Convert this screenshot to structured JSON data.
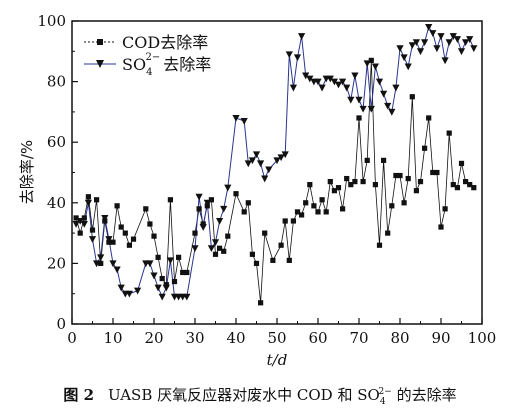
{
  "chart_data": {
    "type": "line",
    "xlabel": "t/d",
    "ylabel": "去除率/%",
    "xlim": [
      0,
      100
    ],
    "ylim": [
      0,
      100
    ],
    "xticks": [
      0,
      10,
      20,
      30,
      40,
      50,
      60,
      70,
      80,
      90,
      100
    ],
    "yticks": [
      0,
      20,
      40,
      60,
      80,
      100
    ],
    "legend_position": "top-left",
    "grid": false,
    "series": [
      {
        "name": "COD去除率",
        "marker": "square",
        "color": "#111111",
        "points": [
          [
            1,
            35
          ],
          [
            2,
            30
          ],
          [
            3,
            35
          ],
          [
            4,
            42
          ],
          [
            5,
            31
          ],
          [
            6,
            41
          ],
          [
            7,
            20
          ],
          [
            8,
            34
          ],
          [
            9,
            27
          ],
          [
            10,
            27
          ],
          [
            11,
            39
          ],
          [
            12,
            32
          ],
          [
            13,
            30
          ],
          [
            14,
            26
          ],
          [
            15,
            28
          ],
          [
            18,
            38
          ],
          [
            19,
            33
          ],
          [
            20,
            29
          ],
          [
            21,
            22
          ],
          [
            22,
            15
          ],
          [
            23,
            13
          ],
          [
            24,
            41
          ],
          [
            25,
            14
          ],
          [
            26,
            22
          ],
          [
            27,
            17
          ],
          [
            28,
            17
          ],
          [
            30,
            30
          ],
          [
            31,
            38
          ],
          [
            32,
            33
          ],
          [
            33,
            39
          ],
          [
            34,
            41
          ],
          [
            35,
            23
          ],
          [
            36,
            25
          ],
          [
            37,
            24
          ],
          [
            38,
            29
          ],
          [
            40,
            43
          ],
          [
            42,
            37
          ],
          [
            43,
            40
          ],
          [
            44,
            23
          ],
          [
            45,
            20
          ],
          [
            46,
            7
          ],
          [
            47,
            30
          ],
          [
            49,
            21
          ],
          [
            51,
            26
          ],
          [
            52,
            34
          ],
          [
            53,
            21
          ],
          [
            54,
            34
          ],
          [
            55,
            37
          ],
          [
            56,
            36
          ],
          [
            57,
            40
          ],
          [
            58,
            46
          ],
          [
            59,
            39
          ],
          [
            60,
            37
          ],
          [
            61,
            41
          ],
          [
            62,
            37
          ],
          [
            63,
            47
          ],
          [
            64,
            44
          ],
          [
            65,
            45
          ],
          [
            66,
            38
          ],
          [
            67,
            48
          ],
          [
            68,
            46
          ],
          [
            69,
            47
          ],
          [
            70,
            68
          ],
          [
            71,
            47
          ],
          [
            72,
            54
          ],
          [
            73,
            87
          ],
          [
            74,
            46
          ],
          [
            75,
            26
          ],
          [
            76,
            54
          ],
          [
            77,
            30
          ],
          [
            78,
            39
          ],
          [
            79,
            49
          ],
          [
            80,
            49
          ],
          [
            81,
            40
          ],
          [
            82,
            48
          ],
          [
            83,
            75
          ],
          [
            84,
            44
          ],
          [
            85,
            47
          ],
          [
            86,
            58
          ],
          [
            87,
            68
          ],
          [
            88,
            50
          ],
          [
            89,
            50
          ],
          [
            90,
            32
          ],
          [
            91,
            38
          ],
          [
            92,
            63
          ],
          [
            93,
            46
          ],
          [
            94,
            45
          ],
          [
            95,
            53
          ],
          [
            96,
            47
          ],
          [
            97,
            46
          ],
          [
            98,
            45
          ]
        ]
      },
      {
        "name": "SO4 2- 去除率",
        "marker": "triangle-down",
        "color": "#2a3590",
        "points": [
          [
            1,
            33
          ],
          [
            2,
            34
          ],
          [
            3,
            33
          ],
          [
            4,
            40
          ],
          [
            5,
            28
          ],
          [
            6,
            20
          ],
          [
            7,
            22
          ],
          [
            8,
            35
          ],
          [
            9,
            28
          ],
          [
            10,
            20
          ],
          [
            11,
            18
          ],
          [
            12,
            12
          ],
          [
            13,
            10
          ],
          [
            14,
            10
          ],
          [
            16,
            11
          ],
          [
            18,
            20
          ],
          [
            19,
            20
          ],
          [
            20,
            16
          ],
          [
            21,
            12
          ],
          [
            22,
            9
          ],
          [
            23,
            12
          ],
          [
            24,
            21
          ],
          [
            25,
            9
          ],
          [
            26,
            9
          ],
          [
            27,
            9
          ],
          [
            28,
            9
          ],
          [
            30,
            25
          ],
          [
            31,
            42
          ],
          [
            32,
            32
          ],
          [
            33,
            40
          ],
          [
            34,
            25
          ],
          [
            35,
            27
          ],
          [
            36,
            34
          ],
          [
            37,
            38
          ],
          [
            38,
            45
          ],
          [
            40,
            68
          ],
          [
            42,
            67
          ],
          [
            43,
            53
          ],
          [
            44,
            54
          ],
          [
            45,
            56
          ],
          [
            46,
            53
          ],
          [
            47,
            48
          ],
          [
            48,
            51
          ],
          [
            50,
            54
          ],
          [
            51,
            55
          ],
          [
            52,
            56
          ],
          [
            53,
            89
          ],
          [
            54,
            78
          ],
          [
            55,
            88
          ],
          [
            56,
            95
          ],
          [
            57,
            82
          ],
          [
            58,
            81
          ],
          [
            59,
            80
          ],
          [
            60,
            80
          ],
          [
            61,
            78
          ],
          [
            62,
            81
          ],
          [
            63,
            81
          ],
          [
            64,
            80
          ],
          [
            65,
            79
          ],
          [
            66,
            80
          ],
          [
            67,
            78
          ],
          [
            68,
            74
          ],
          [
            69,
            82
          ],
          [
            70,
            74
          ],
          [
            71,
            71
          ],
          [
            72,
            86
          ],
          [
            73,
            71
          ],
          [
            74,
            85
          ],
          [
            75,
            80
          ],
          [
            76,
            76
          ],
          [
            77,
            72
          ],
          [
            78,
            70
          ],
          [
            79,
            78
          ],
          [
            80,
            91
          ],
          [
            81,
            88
          ],
          [
            82,
            85
          ],
          [
            83,
            92
          ],
          [
            84,
            93
          ],
          [
            85,
            90
          ],
          [
            86,
            93
          ],
          [
            87,
            98
          ],
          [
            88,
            96
          ],
          [
            89,
            91
          ],
          [
            90,
            95
          ],
          [
            91,
            87
          ],
          [
            92,
            93
          ],
          [
            93,
            95
          ],
          [
            94,
            94
          ],
          [
            95,
            90
          ],
          [
            96,
            93
          ],
          [
            97,
            94
          ],
          [
            98,
            91
          ]
        ]
      }
    ]
  },
  "legend": {
    "cod_label": "COD去除率",
    "so4_prefix": "SO",
    "so4_sub": "4",
    "so4_sup": "2−",
    "so4_suffix": "去除率"
  },
  "caption": {
    "figure_label": "图 2",
    "text_before": "UASB 厌氧反应器对废水中 COD 和 SO",
    "sub": "4",
    "sup": "2−",
    "text_after": " 的去除率"
  }
}
